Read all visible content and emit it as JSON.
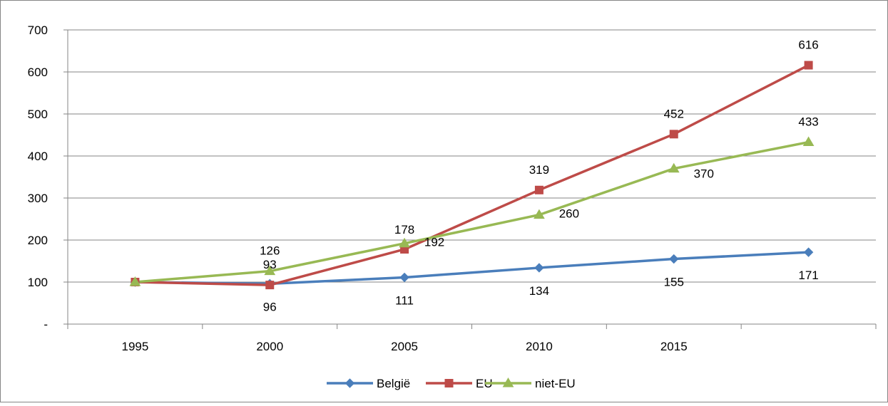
{
  "chart_data": {
    "type": "line",
    "title": "",
    "xlabel": "",
    "ylabel": "",
    "categories": [
      "1995",
      "2000",
      "2005",
      "2010",
      "2015",
      ""
    ],
    "y_ticks": [
      0,
      100,
      200,
      300,
      400,
      500,
      600,
      700
    ],
    "y_tick_labels": [
      "-",
      "100",
      "200",
      "300",
      "400",
      "500",
      "600",
      "700"
    ],
    "ylim": [
      0,
      700
    ],
    "grid": "horizontal",
    "legend_position": "bottom",
    "series": [
      {
        "name": "België",
        "color": "#4A7EBB",
        "marker": "diamond",
        "values": [
          100,
          96,
          111,
          134,
          155,
          171
        ],
        "labels": [
          "",
          "96",
          "111",
          "134",
          "155",
          "171"
        ],
        "label_position": "below"
      },
      {
        "name": "EU",
        "color": "#BE4B48",
        "marker": "square",
        "values": [
          100,
          93,
          178,
          319,
          452,
          616
        ],
        "labels": [
          "",
          "93",
          "178",
          "319",
          "452",
          "616"
        ],
        "label_position": "above"
      },
      {
        "name": "niet-EU",
        "color": "#98B954",
        "marker": "triangle",
        "values": [
          100,
          126,
          192,
          260,
          370,
          433
        ],
        "labels": [
          "",
          "126",
          "192",
          "260",
          "370",
          "433"
        ],
        "label_position": "mixed"
      }
    ]
  }
}
